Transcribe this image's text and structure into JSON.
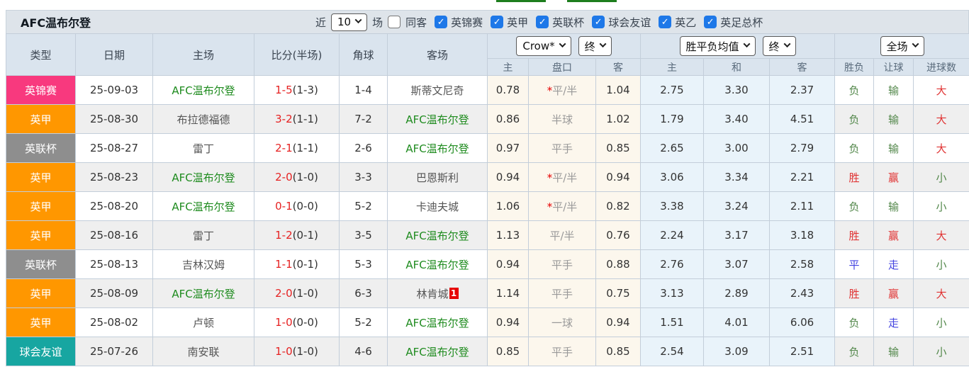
{
  "colors": {
    "league_pink": "#F8397E",
    "league_orange": "#FF9700",
    "league_gray": "#8E8E8E",
    "league_teal": "#17A6A1",
    "self_team_green": "#1E8B1E",
    "score_red": "#E62222",
    "result_red": "#E03333",
    "result_green": "#52874A",
    "result_blue": "#4444E0",
    "crow_bg": "#FCF7ED",
    "avg_bg": "#E9F3FA",
    "checkbox_blue": "#1E78E8",
    "tab_underline_green": "#1E7E1E"
  },
  "toolbar": {
    "title": "AFC温布尔登",
    "recent_label": "近",
    "recent_value": "10",
    "matches_label": "场",
    "same_away": {
      "label": "同客",
      "checked": false
    },
    "filters": [
      {
        "label": "英锦赛",
        "checked": true
      },
      {
        "label": "英甲",
        "checked": true
      },
      {
        "label": "英联杯",
        "checked": true
      },
      {
        "label": "球会友谊",
        "checked": true
      },
      {
        "label": "英乙",
        "checked": true
      },
      {
        "label": "英足总杯",
        "checked": true
      }
    ],
    "check_glyph": "✓"
  },
  "header": {
    "main_cols": [
      "类型",
      "日期",
      "主场",
      "比分(半场)",
      "角球",
      "客场"
    ],
    "odds_source_select": "Crow*",
    "odds_time_select": "终",
    "avg_type_select": "胜平负均值",
    "avg_time_select": "终",
    "period_select": "全场",
    "sub_cols": [
      "主",
      "盘口",
      "客",
      "主",
      "和",
      "客",
      "胜负",
      "让球",
      "进球数"
    ]
  },
  "rows": [
    {
      "league": {
        "text": "英锦赛",
        "color": "pink"
      },
      "date": "25-09-03",
      "home": {
        "text": "AFC温布尔登",
        "color": "self"
      },
      "score": {
        "ft": "1-5",
        "ht": "(1-3)"
      },
      "corners": "1-4",
      "away": {
        "text": "斯蒂文尼奇",
        "color": "plain",
        "badge": ""
      },
      "crow": {
        "home": "0.78",
        "star": "*",
        "handicap": "平/半",
        "away": "1.04"
      },
      "avg": {
        "home": "2.75",
        "draw": "3.30",
        "away": "2.37"
      },
      "result": {
        "text": "负",
        "color": "green"
      },
      "handicap_result": {
        "text": "输",
        "color": "green"
      },
      "goals": {
        "text": "大",
        "color": "red"
      }
    },
    {
      "league": {
        "text": "英甲",
        "color": "orange"
      },
      "date": "25-08-30",
      "home": {
        "text": "布拉德福德",
        "color": "plain"
      },
      "score": {
        "ft": "3-2",
        "ht": "(1-1)"
      },
      "corners": "7-2",
      "away": {
        "text": "AFC温布尔登",
        "color": "self",
        "badge": ""
      },
      "crow": {
        "home": "0.86",
        "star": "",
        "handicap": "半球",
        "away": "1.02"
      },
      "avg": {
        "home": "1.79",
        "draw": "3.40",
        "away": "4.51"
      },
      "result": {
        "text": "负",
        "color": "green"
      },
      "handicap_result": {
        "text": "输",
        "color": "green"
      },
      "goals": {
        "text": "大",
        "color": "red"
      }
    },
    {
      "league": {
        "text": "英联杯",
        "color": "gray"
      },
      "date": "25-08-27",
      "home": {
        "text": "雷丁",
        "color": "plain"
      },
      "score": {
        "ft": "2-1",
        "ht": "(1-1)"
      },
      "corners": "2-6",
      "away": {
        "text": "AFC温布尔登",
        "color": "self",
        "badge": ""
      },
      "crow": {
        "home": "0.97",
        "star": "",
        "handicap": "平手",
        "away": "0.85"
      },
      "avg": {
        "home": "2.65",
        "draw": "3.00",
        "away": "2.79"
      },
      "result": {
        "text": "负",
        "color": "green"
      },
      "handicap_result": {
        "text": "输",
        "color": "green"
      },
      "goals": {
        "text": "大",
        "color": "red"
      }
    },
    {
      "league": {
        "text": "英甲",
        "color": "orange"
      },
      "date": "25-08-23",
      "home": {
        "text": "AFC温布尔登",
        "color": "self"
      },
      "score": {
        "ft": "2-0",
        "ht": "(1-0)"
      },
      "corners": "3-3",
      "away": {
        "text": "巴恩斯利",
        "color": "plain",
        "badge": ""
      },
      "crow": {
        "home": "0.94",
        "star": "*",
        "handicap": "平/半",
        "away": "0.94"
      },
      "avg": {
        "home": "3.06",
        "draw": "3.34",
        "away": "2.21"
      },
      "result": {
        "text": "胜",
        "color": "red"
      },
      "handicap_result": {
        "text": "赢",
        "color": "red"
      },
      "goals": {
        "text": "小",
        "color": "green"
      }
    },
    {
      "league": {
        "text": "英甲",
        "color": "orange"
      },
      "date": "25-08-20",
      "home": {
        "text": "AFC温布尔登",
        "color": "self"
      },
      "score": {
        "ft": "0-1",
        "ht": "(0-0)"
      },
      "corners": "5-2",
      "away": {
        "text": "卡迪夫城",
        "color": "plain",
        "badge": ""
      },
      "crow": {
        "home": "1.06",
        "star": "*",
        "handicap": "平/半",
        "away": "0.82"
      },
      "avg": {
        "home": "3.38",
        "draw": "3.24",
        "away": "2.11"
      },
      "result": {
        "text": "负",
        "color": "green"
      },
      "handicap_result": {
        "text": "输",
        "color": "green"
      },
      "goals": {
        "text": "小",
        "color": "green"
      }
    },
    {
      "league": {
        "text": "英甲",
        "color": "orange"
      },
      "date": "25-08-16",
      "home": {
        "text": "雷丁",
        "color": "plain"
      },
      "score": {
        "ft": "1-2",
        "ht": "(0-1)"
      },
      "corners": "3-5",
      "away": {
        "text": "AFC温布尔登",
        "color": "self",
        "badge": ""
      },
      "crow": {
        "home": "1.13",
        "star": "",
        "handicap": "平/半",
        "away": "0.76"
      },
      "avg": {
        "home": "2.24",
        "draw": "3.17",
        "away": "3.18"
      },
      "result": {
        "text": "胜",
        "color": "red"
      },
      "handicap_result": {
        "text": "赢",
        "color": "red"
      },
      "goals": {
        "text": "大",
        "color": "red"
      }
    },
    {
      "league": {
        "text": "英联杯",
        "color": "gray"
      },
      "date": "25-08-13",
      "home": {
        "text": "吉林汉姆",
        "color": "plain"
      },
      "score": {
        "ft": "1-1",
        "ht": "(0-1)"
      },
      "corners": "5-3",
      "away": {
        "text": "AFC温布尔登",
        "color": "self",
        "badge": ""
      },
      "crow": {
        "home": "0.94",
        "star": "",
        "handicap": "平手",
        "away": "0.88"
      },
      "avg": {
        "home": "2.76",
        "draw": "3.07",
        "away": "2.58"
      },
      "result": {
        "text": "平",
        "color": "blue"
      },
      "handicap_result": {
        "text": "走",
        "color": "blue"
      },
      "goals": {
        "text": "小",
        "color": "green"
      }
    },
    {
      "league": {
        "text": "英甲",
        "color": "orange"
      },
      "date": "25-08-09",
      "home": {
        "text": "AFC温布尔登",
        "color": "self"
      },
      "score": {
        "ft": "2-0",
        "ht": "(1-0)"
      },
      "corners": "6-3",
      "away": {
        "text": "林肯城",
        "color": "plain",
        "badge": "1"
      },
      "crow": {
        "home": "1.14",
        "star": "",
        "handicap": "平手",
        "away": "0.75"
      },
      "avg": {
        "home": "3.13",
        "draw": "2.89",
        "away": "2.43"
      },
      "result": {
        "text": "胜",
        "color": "red"
      },
      "handicap_result": {
        "text": "赢",
        "color": "red"
      },
      "goals": {
        "text": "大",
        "color": "red"
      }
    },
    {
      "league": {
        "text": "英甲",
        "color": "orange"
      },
      "date": "25-08-02",
      "home": {
        "text": "卢顿",
        "color": "plain"
      },
      "score": {
        "ft": "1-0",
        "ht": "(0-0)"
      },
      "corners": "5-2",
      "away": {
        "text": "AFC温布尔登",
        "color": "self",
        "badge": ""
      },
      "crow": {
        "home": "0.94",
        "star": "",
        "handicap": "一球",
        "away": "0.94"
      },
      "avg": {
        "home": "1.51",
        "draw": "4.01",
        "away": "6.06"
      },
      "result": {
        "text": "负",
        "color": "green"
      },
      "handicap_result": {
        "text": "走",
        "color": "blue"
      },
      "goals": {
        "text": "小",
        "color": "green"
      }
    },
    {
      "league": {
        "text": "球会友谊",
        "color": "teal"
      },
      "date": "25-07-26",
      "home": {
        "text": "南安联",
        "color": "plain"
      },
      "score": {
        "ft": "1-0",
        "ht": "(1-0)"
      },
      "corners": "4-6",
      "away": {
        "text": "AFC温布尔登",
        "color": "self",
        "badge": ""
      },
      "crow": {
        "home": "0.85",
        "star": "",
        "handicap": "平手",
        "away": "0.85"
      },
      "avg": {
        "home": "2.54",
        "draw": "3.09",
        "away": "2.51"
      },
      "result": {
        "text": "负",
        "color": "green"
      },
      "handicap_result": {
        "text": "输",
        "color": "green"
      },
      "goals": {
        "text": "小",
        "color": "green"
      }
    }
  ]
}
